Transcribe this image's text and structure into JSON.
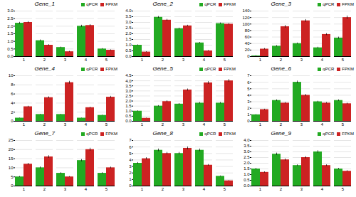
{
  "chart_data": [
    {
      "type": "bar",
      "title": "Gene_1",
      "categories": [
        "1",
        "2",
        "3",
        "4",
        "5"
      ],
      "series": [
        {
          "name": "qPCR",
          "color": "#22aa22",
          "values": [
            2.2,
            1.05,
            0.6,
            2.0,
            0.5
          ],
          "errors": [
            0.06,
            0.05,
            0.03,
            0.07,
            0.03
          ]
        },
        {
          "name": "FPKM",
          "color": "#cc2222",
          "values": [
            2.25,
            0.75,
            0.32,
            2.05,
            0.42
          ],
          "errors": [
            0.06,
            0.04,
            0.03,
            0.06,
            0.03
          ]
        }
      ],
      "ylim": [
        0,
        3
      ],
      "yticks": [
        {
          "value": 0,
          "label": "0.0"
        },
        0.5,
        {
          "value": 1.0,
          "label": "1.0"
        },
        1.5,
        {
          "value": 2.0,
          "label": "2.0"
        },
        2.5,
        {
          "value": 3.0,
          "label": "3.0"
        }
      ],
      "grid": true,
      "legend": "upper right"
    },
    {
      "type": "bar",
      "title": "Gene_2",
      "categories": [
        "1",
        "2",
        "3",
        "4",
        "5"
      ],
      "series": [
        {
          "name": "qPCR",
          "color": "#22aa22",
          "values": [
            1.0,
            3.45,
            2.45,
            1.2,
            2.9
          ],
          "errors": [
            0.04,
            0.08,
            0.06,
            0.05,
            0.06
          ]
        },
        {
          "name": "FPKM",
          "color": "#cc2222",
          "values": [
            0.4,
            3.2,
            2.7,
            0.5,
            2.85
          ],
          "errors": [
            0.03,
            0.08,
            0.06,
            0.04,
            0.06
          ]
        }
      ],
      "ylim": [
        0,
        4
      ],
      "yticks": [
        {
          "value": 0,
          "label": "0.0"
        },
        0.5,
        {
          "value": 1.0,
          "label": "1.0"
        },
        1.5,
        {
          "value": 2.0,
          "label": "2.0"
        },
        2.5,
        {
          "value": 3.0,
          "label": "3.0"
        },
        3.5,
        {
          "value": 4.0,
          "label": "4.0"
        }
      ],
      "grid": true,
      "legend": "upper right"
    },
    {
      "type": "bar",
      "title": "Gene_3",
      "categories": [
        "1",
        "2",
        "3",
        "4",
        "5"
      ],
      "series": [
        {
          "name": "qPCR",
          "color": "#22aa22",
          "values": [
            2,
            32,
            40,
            27,
            57
          ],
          "errors": [
            1,
            2,
            2,
            2,
            3
          ]
        },
        {
          "name": "FPKM",
          "color": "#cc2222",
          "values": [
            23,
            92,
            110,
            68,
            120
          ],
          "errors": [
            2,
            4,
            4,
            3,
            5
          ]
        }
      ],
      "ylim": [
        0,
        140
      ],
      "yticks": [
        0,
        20,
        40,
        60,
        80,
        100,
        120,
        140
      ],
      "grid": true,
      "legend": "upper right"
    },
    {
      "type": "bar",
      "title": "Gene_4",
      "categories": [
        "1",
        "2",
        "3",
        "4",
        "5"
      ],
      "series": [
        {
          "name": "qPCR",
          "color": "#22aa22",
          "values": [
            0.7,
            1.5,
            1.5,
            0.7,
            1.3
          ],
          "errors": [
            0.04,
            0.06,
            0.06,
            0.04,
            0.06
          ]
        },
        {
          "name": "FPKM",
          "color": "#cc2222",
          "values": [
            3.2,
            5.2,
            8.5,
            3.0,
            5.3
          ],
          "errors": [
            0.13,
            0.2,
            0.3,
            0.12,
            0.2
          ]
        }
      ],
      "ylim": [
        0,
        10
      ],
      "yticks": [
        0,
        2,
        4,
        6,
        8,
        10
      ],
      "grid": true,
      "legend": "upper right"
    },
    {
      "type": "bar",
      "title": "Gene_5",
      "categories": [
        "1",
        "2",
        "3",
        "4",
        "5"
      ],
      "series": [
        {
          "name": "qPCR",
          "color": "#22aa22",
          "values": [
            1.0,
            1.5,
            1.7,
            1.8,
            1.8
          ],
          "errors": [
            0.04,
            0.06,
            0.06,
            0.07,
            0.07
          ]
        },
        {
          "name": "FPKM",
          "color": "#cc2222",
          "values": [
            0.3,
            1.95,
            3.1,
            3.8,
            4.0
          ],
          "errors": [
            0.02,
            0.08,
            0.1,
            0.13,
            0.14
          ]
        }
      ],
      "ylim": [
        0,
        4.5
      ],
      "yticks": [
        {
          "value": 0,
          "label": "0.0"
        },
        0.5,
        {
          "value": 1.0,
          "label": "1.0"
        },
        1.5,
        {
          "value": 2.0,
          "label": "2.0"
        },
        2.5,
        {
          "value": 3.0,
          "label": "3.0"
        },
        3.5,
        {
          "value": 4.0,
          "label": "4.0"
        },
        4.5
      ],
      "grid": true,
      "legend": "upper right"
    },
    {
      "type": "bar",
      "title": "Gene_6",
      "categories": [
        "1",
        "2",
        "3",
        "4",
        "5"
      ],
      "series": [
        {
          "name": "qPCR",
          "color": "#22aa22",
          "values": [
            1.0,
            3.2,
            6.0,
            3.0,
            3.2
          ],
          "errors": [
            0.04,
            0.11,
            0.2,
            0.1,
            0.11
          ]
        },
        {
          "name": "FPKM",
          "color": "#cc2222",
          "values": [
            1.8,
            2.8,
            4.0,
            2.8,
            2.7
          ],
          "errors": [
            0.07,
            0.1,
            0.14,
            0.1,
            0.1
          ]
        }
      ],
      "ylim": [
        0,
        7
      ],
      "yticks": [
        0,
        1,
        2,
        3,
        4,
        5,
        6,
        7
      ],
      "grid": true,
      "legend": "upper right"
    },
    {
      "type": "bar",
      "title": "Gene_7",
      "categories": [
        "1",
        "2",
        "3",
        "4",
        "5"
      ],
      "series": [
        {
          "name": "qPCR",
          "color": "#22aa22",
          "values": [
            5,
            10,
            7,
            14,
            7
          ],
          "errors": [
            0.3,
            0.5,
            0.35,
            0.6,
            0.35
          ]
        },
        {
          "name": "FPKM",
          "color": "#cc2222",
          "values": [
            12,
            16,
            5,
            20,
            10
          ],
          "errors": [
            0.5,
            0.7,
            0.25,
            0.8,
            0.45
          ]
        }
      ],
      "ylim": [
        0,
        25
      ],
      "yticks": [
        0,
        5,
        10,
        15,
        20,
        25
      ],
      "grid": true,
      "legend": "upper right"
    },
    {
      "type": "bar",
      "title": "Gene_8",
      "categories": [
        "1",
        "2",
        "3",
        "4",
        "5"
      ],
      "series": [
        {
          "name": "qPCR",
          "color": "#22aa22",
          "values": [
            3.5,
            5.5,
            5.0,
            5.5,
            1.5
          ],
          "errors": [
            0.13,
            0.2,
            0.18,
            0.2,
            0.06
          ]
        },
        {
          "name": "FPKM",
          "color": "#cc2222",
          "values": [
            4.2,
            5.0,
            5.8,
            3.2,
            0.8
          ],
          "errors": [
            0.16,
            0.18,
            0.22,
            0.12,
            0.04
          ]
        }
      ],
      "ylim": [
        0,
        7
      ],
      "yticks": [
        0,
        1,
        2,
        3,
        4,
        5,
        6,
        7
      ],
      "grid": true,
      "legend": "upper right"
    },
    {
      "type": "bar",
      "title": "Gene_9",
      "categories": [
        "1",
        "2",
        "3",
        "4",
        "5"
      ],
      "series": [
        {
          "name": "qPCR",
          "color": "#22aa22",
          "values": [
            1.5,
            2.8,
            1.8,
            3.0,
            1.5
          ],
          "errors": [
            0.06,
            0.1,
            0.07,
            0.11,
            0.06
          ]
        },
        {
          "name": "FPKM",
          "color": "#cc2222",
          "values": [
            1.2,
            2.3,
            2.5,
            1.8,
            1.3
          ],
          "errors": [
            0.05,
            0.09,
            0.09,
            0.07,
            0.05
          ]
        }
      ],
      "ylim": [
        0,
        4
      ],
      "yticks": [
        {
          "value": 0,
          "label": "0.0"
        },
        0.5,
        {
          "value": 1.0,
          "label": "1.0"
        },
        1.5,
        {
          "value": 2.0,
          "label": "2.0"
        },
        2.5,
        {
          "value": 3.0,
          "label": "3.0"
        },
        3.5,
        {
          "value": 4.0,
          "label": "4.0"
        }
      ],
      "grid": true,
      "legend": "upper right"
    }
  ]
}
